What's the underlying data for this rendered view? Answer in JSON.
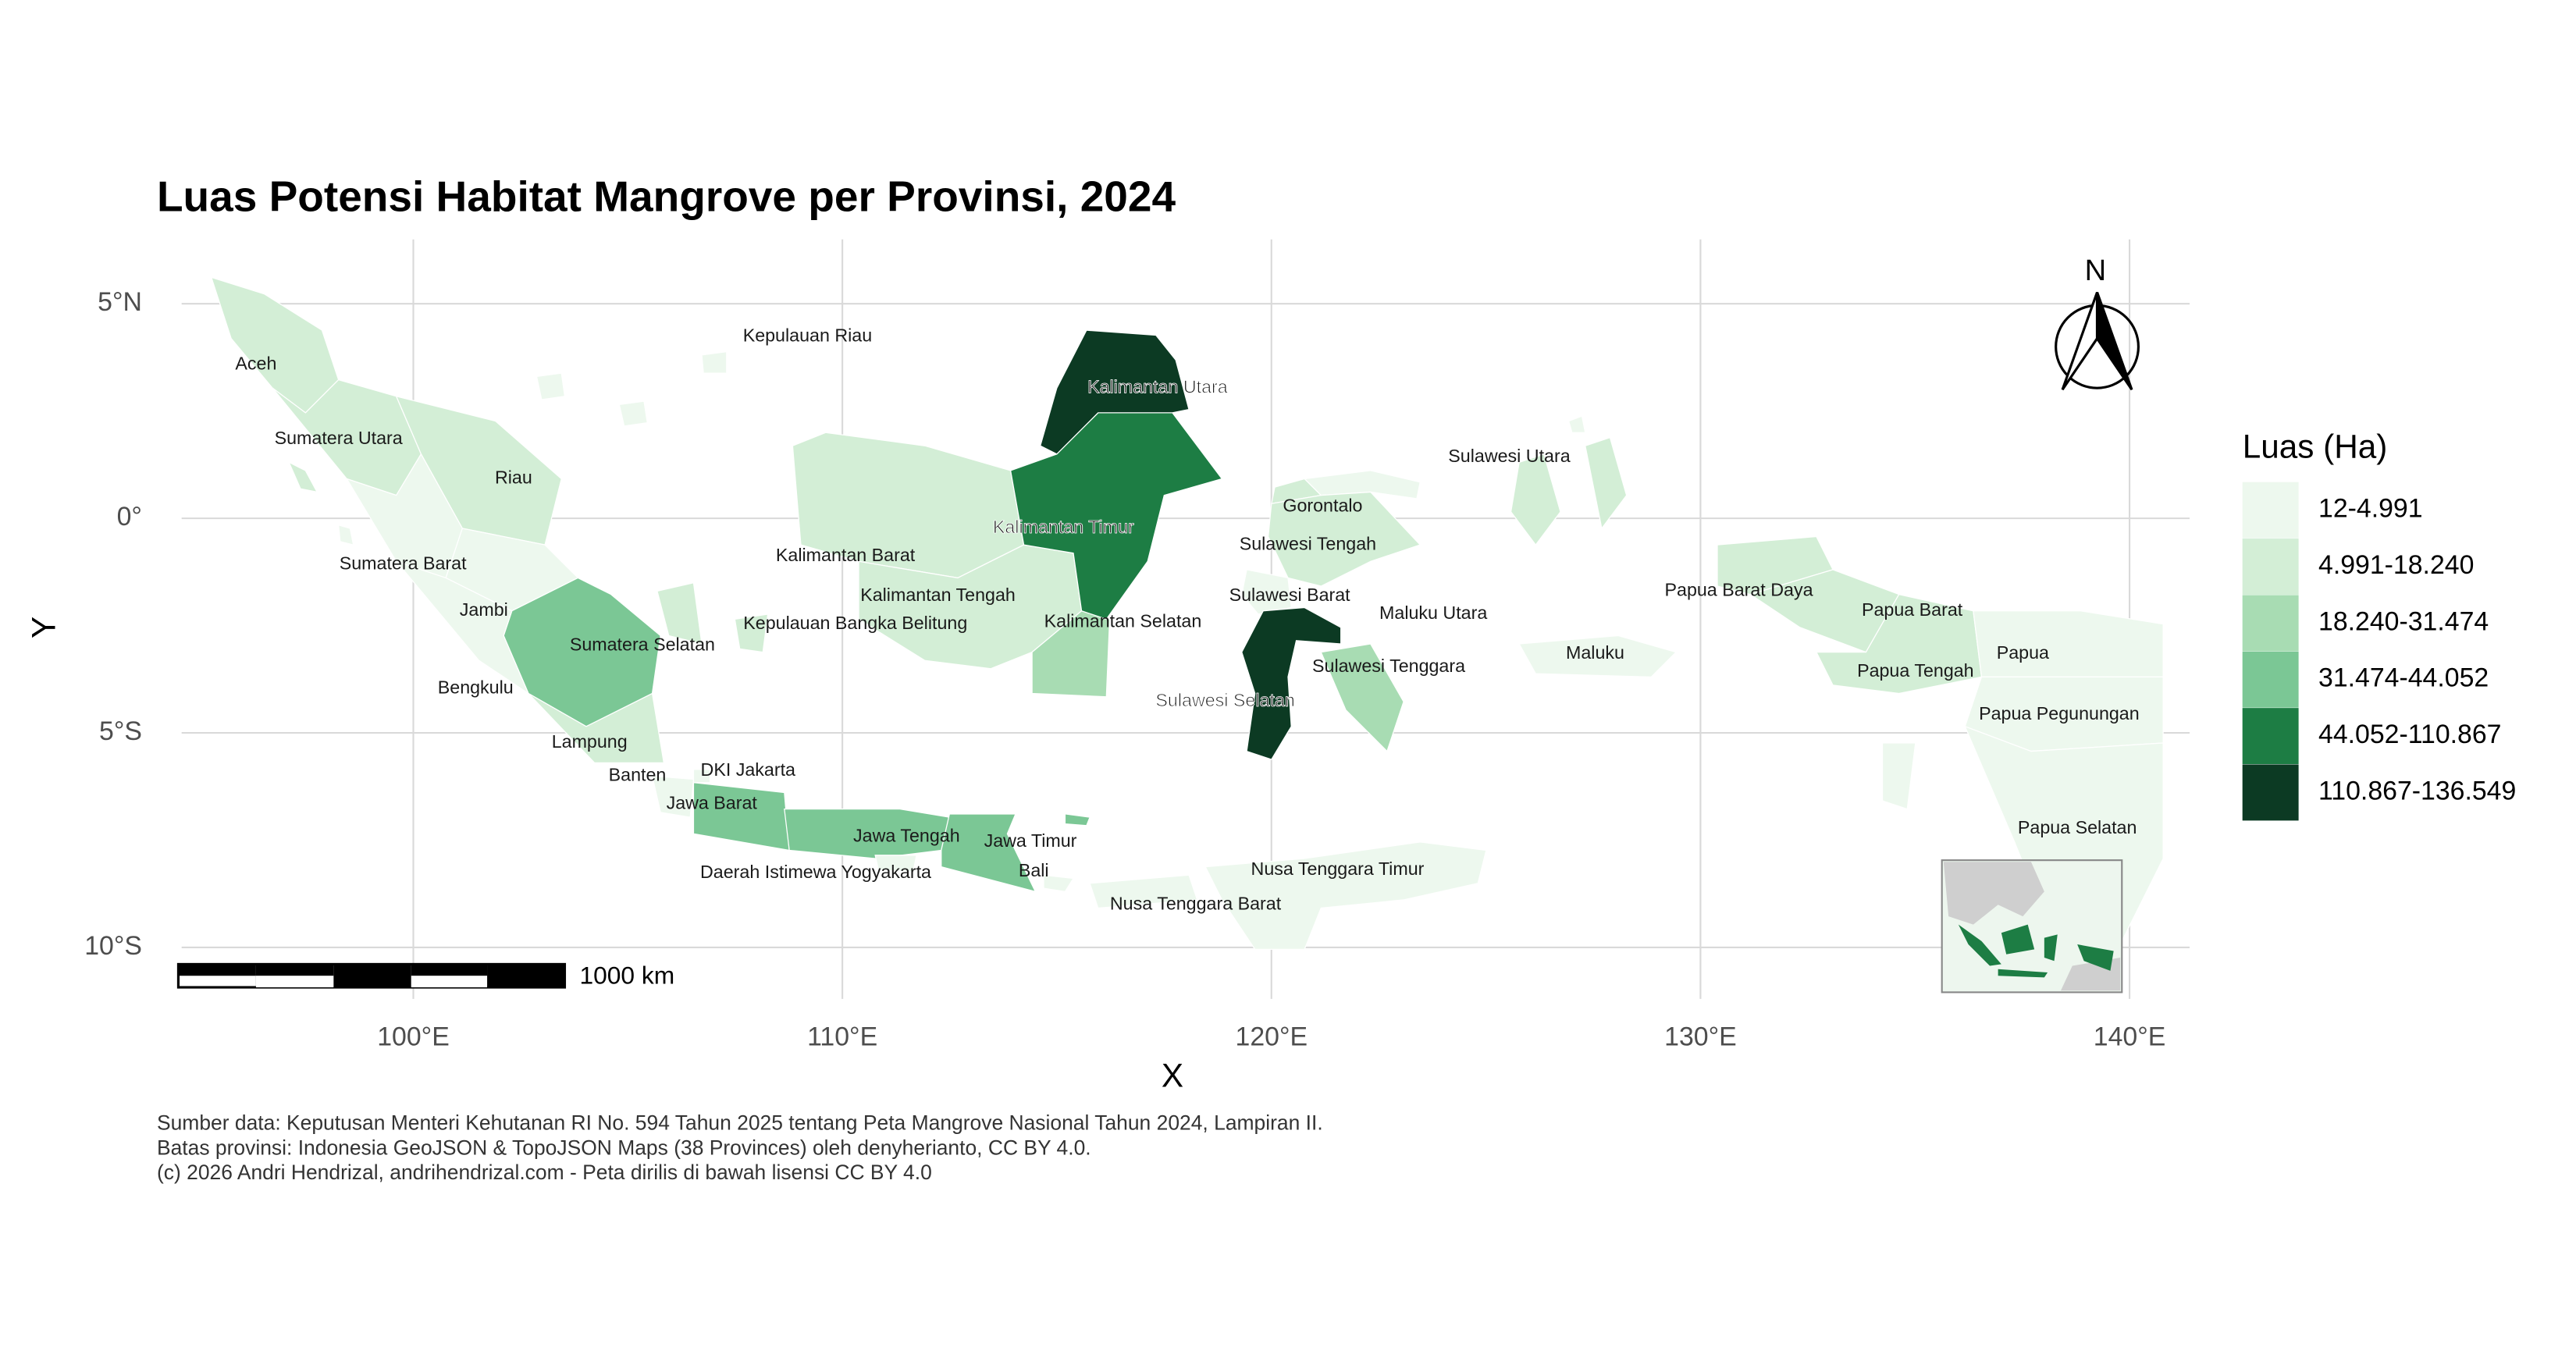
{
  "map": {
    "title": "Luas Potensi Habitat Mangrove per Provinsi, 2024",
    "xlabel": "X",
    "ylabel": "Y",
    "xlim": [
      94.6,
      141.4
    ],
    "ylim": [
      -11.2,
      6.5
    ],
    "xticks": [
      {
        "value": 100,
        "label": "100°E"
      },
      {
        "value": 110,
        "label": "110°E"
      },
      {
        "value": 120,
        "label": "120°E"
      },
      {
        "value": 130,
        "label": "130°E"
      },
      {
        "value": 140,
        "label": "140°E"
      }
    ],
    "yticks": [
      {
        "value": 5,
        "label": "5°N"
      },
      {
        "value": 0,
        "label": "0°"
      },
      {
        "value": -5,
        "label": "5°S"
      },
      {
        "value": -10,
        "label": "10°S"
      }
    ],
    "grid": true,
    "legend": {
      "title": "Luas (Ha)",
      "entries": [
        {
          "label": "12-4.991",
          "color": "#edf8ee"
        },
        {
          "label": "4.991-18.240",
          "color": "#d3eed6"
        },
        {
          "label": "18.240-31.474",
          "color": "#a8dcb3"
        },
        {
          "label": "31.474-44.052",
          "color": "#7bc795"
        },
        {
          "label": "44.052-110.867",
          "color": "#1d7d44"
        },
        {
          "label": "110.867-136.549",
          "color": "#0c3a23"
        }
      ]
    },
    "provinces": [
      {
        "name": "Aceh",
        "color": "#d3eed6"
      },
      {
        "name": "Sumatera Utara",
        "color": "#d3eed6"
      },
      {
        "name": "Riau",
        "color": "#d3eed6"
      },
      {
        "name": "Sumatera Barat",
        "color": "#edf8ee"
      },
      {
        "name": "Jambi",
        "color": "#edf8ee"
      },
      {
        "name": "Sumatera Selatan",
        "color": "#7bc795"
      },
      {
        "name": "Bengkulu",
        "color": "#edf8ee"
      },
      {
        "name": "Lampung",
        "color": "#d3eed6"
      },
      {
        "name": "Kepulauan Riau",
        "color": "#edf8ee"
      },
      {
        "name": "Kepulauan Bangka Belitung",
        "color": "#d3eed6"
      },
      {
        "name": "Banten",
        "color": "#edf8ee"
      },
      {
        "name": "DKI Jakarta",
        "color": "#edf8ee"
      },
      {
        "name": "Jawa Barat",
        "color": "#7bc795"
      },
      {
        "name": "Jawa Tengah",
        "color": "#7bc795"
      },
      {
        "name": "Daerah Istimewa Yogyakarta",
        "color": "#edf8ee"
      },
      {
        "name": "Jawa Timur",
        "color": "#7bc795"
      },
      {
        "name": "Bali",
        "color": "#edf8ee"
      },
      {
        "name": "Kalimantan Barat",
        "color": "#d3eed6"
      },
      {
        "name": "Kalimantan Tengah",
        "color": "#d3eed6"
      },
      {
        "name": "Kalimantan Selatan",
        "color": "#a8dcb3"
      },
      {
        "name": "Kalimantan Timur",
        "color": "#1d7d44"
      },
      {
        "name": "Kalimantan Utara",
        "color": "#0c3a23"
      },
      {
        "name": "Sulawesi Utara",
        "color": "#edf8ee"
      },
      {
        "name": "Gorontalo",
        "color": "#d3eed6"
      },
      {
        "name": "Sulawesi Tengah",
        "color": "#d3eed6"
      },
      {
        "name": "Sulawesi Barat",
        "color": "#edf8ee"
      },
      {
        "name": "Sulawesi Selatan",
        "color": "#0c3a23"
      },
      {
        "name": "Sulawesi Tenggara",
        "color": "#a8dcb3"
      },
      {
        "name": "Maluku Utara",
        "color": "#d3eed6"
      },
      {
        "name": "Maluku",
        "color": "#edf8ee"
      },
      {
        "name": "Papua Barat Daya",
        "color": "#d3eed6"
      },
      {
        "name": "Papua Barat",
        "color": "#d3eed6"
      },
      {
        "name": "Papua Tengah",
        "color": "#d3eed6"
      },
      {
        "name": "Papua",
        "color": "#edf8ee"
      },
      {
        "name": "Papua Pegunungan",
        "color": "#edf8ee"
      },
      {
        "name": "Papua Selatan",
        "color": "#edf8ee"
      },
      {
        "name": "Nusa Tenggara Barat",
        "color": "#edf8ee"
      },
      {
        "name": "Nusa Tenggara Timur",
        "color": "#edf8ee"
      }
    ],
    "scale_bar": "1000 km",
    "north": "N",
    "caption": [
      "Sumber data: Keputusan Menteri Kehutanan RI No. 594 Tahun 2025 tentang Peta Mangrove Nasional Tahun 2024, Lampiran II.",
      "Batas provinsi: Indonesia GeoJSON & TopoJSON Maps (38 Provinces) oleh denyherianto, CC BY 4.0.",
      "(c) 2026 Andri Hendrizal, andrihendrizal.com - Peta dirilis di bawah lisensi CC BY 4.0"
    ]
  }
}
